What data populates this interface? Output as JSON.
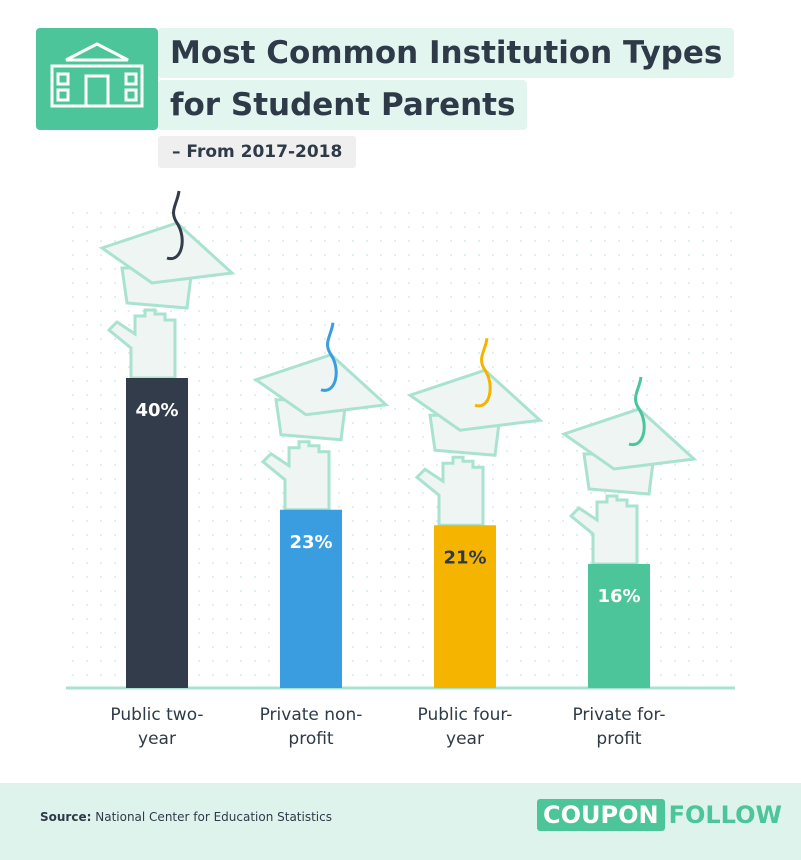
{
  "chart_data": {
    "type": "bar",
    "title_lines": [
      "Most Common Institution Types",
      "for Student Parents"
    ],
    "subtitle": "– From 2017-2018",
    "categories": [
      "Public two-year",
      "Private non-profit",
      "Public four-year",
      "Private for-profit"
    ],
    "values": [
      40,
      23,
      21,
      16
    ],
    "value_labels": [
      "40%",
      "23%",
      "21%",
      "16%"
    ],
    "colors": [
      "#323c4b",
      "#3a9de0",
      "#f5b400",
      "#4cc59a"
    ],
    "ylim": [
      0,
      40
    ],
    "source_label": "Source:",
    "source": "National Center for Education Statistics",
    "brand": [
      "COUPON",
      "FOLLOW"
    ]
  }
}
